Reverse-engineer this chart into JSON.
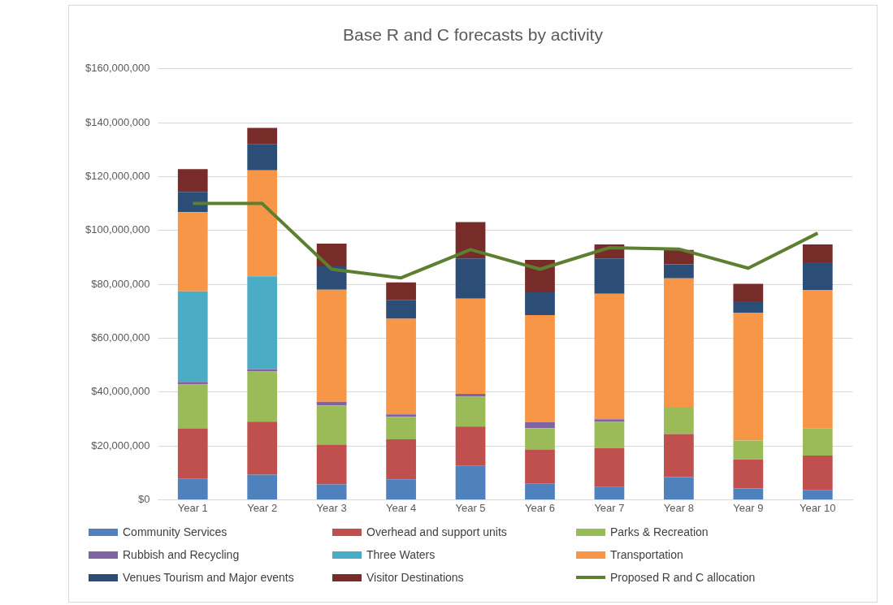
{
  "chart_data": {
    "type": "bar",
    "title": "Base R and C forecasts by activity",
    "stacked": true,
    "grid": "y",
    "legend": "bottom",
    "categories": [
      "Year 1",
      "Year 2",
      "Year 3",
      "Year 4",
      "Year 5",
      "Year 6",
      "Year 7",
      "Year 8",
      "Year 9",
      "Year 10"
    ],
    "ylim": [
      0,
      160000000
    ],
    "yticks": [
      {
        "value": 0,
        "label": "$0"
      },
      {
        "value": 20000000,
        "label": "$20,000,000"
      },
      {
        "value": 40000000,
        "label": "$40,000,000"
      },
      {
        "value": 60000000,
        "label": "$60,000,000"
      },
      {
        "value": 80000000,
        "label": "$80,000,000"
      },
      {
        "value": 100000000,
        "label": "$100,000,000"
      },
      {
        "value": 120000000,
        "label": "$120,000,000"
      },
      {
        "value": 140000000,
        "label": "$140,000,000"
      },
      {
        "value": 160000000,
        "label": "$160,000,000"
      }
    ],
    "series": [
      {
        "name": "Community Services",
        "color": "#4f81bd",
        "values": [
          7900000,
          9300000,
          5700000,
          7600000,
          12700000,
          6100000,
          4700000,
          8400000,
          4200000,
          3700000
        ]
      },
      {
        "name": "Overhead and support units",
        "color": "#c0504d",
        "values": [
          18600000,
          19700000,
          14800000,
          14800000,
          14500000,
          12600000,
          14500000,
          16000000,
          10800000,
          12700000
        ]
      },
      {
        "name": "Parks & Recreation",
        "color": "#9bbb59",
        "values": [
          16300000,
          18600000,
          14500000,
          8400000,
          11100000,
          7900000,
          9700000,
          10100000,
          7000000,
          10200000
        ]
      },
      {
        "name": "Rubbish and Recycling",
        "color": "#8064a2",
        "values": [
          1000000,
          900000,
          1400000,
          900000,
          1000000,
          2200000,
          1000000,
          0,
          0,
          0
        ]
      },
      {
        "name": "Three Waters",
        "color": "#4bacc6",
        "values": [
          33600000,
          34500000,
          0,
          0,
          0,
          0,
          0,
          0,
          0,
          0
        ]
      },
      {
        "name": "Transportation",
        "color": "#f79646",
        "values": [
          29400000,
          39300000,
          41600000,
          35500000,
          35400000,
          39800000,
          46600000,
          47700000,
          47500000,
          51300000
        ]
      },
      {
        "name": "Venues Tourism and Major events",
        "color": "#2c4d75",
        "values": [
          7500000,
          9700000,
          8700000,
          7000000,
          14900000,
          8400000,
          13100000,
          5200000,
          4200000,
          10300000
        ]
      },
      {
        "name": "Visitor Destinations",
        "color": "#772c2a",
        "values": [
          8500000,
          6100000,
          8400000,
          6500000,
          13500000,
          12100000,
          5200000,
          5400000,
          6500000,
          6600000
        ]
      },
      {
        "name": "Proposed R and C allocation",
        "type": "line",
        "color": "#5e7f2f",
        "values": [
          110000000,
          110000000,
          85600000,
          82400000,
          92900000,
          85600000,
          93600000,
          93100000,
          86000000,
          99000000
        ]
      }
    ]
  }
}
